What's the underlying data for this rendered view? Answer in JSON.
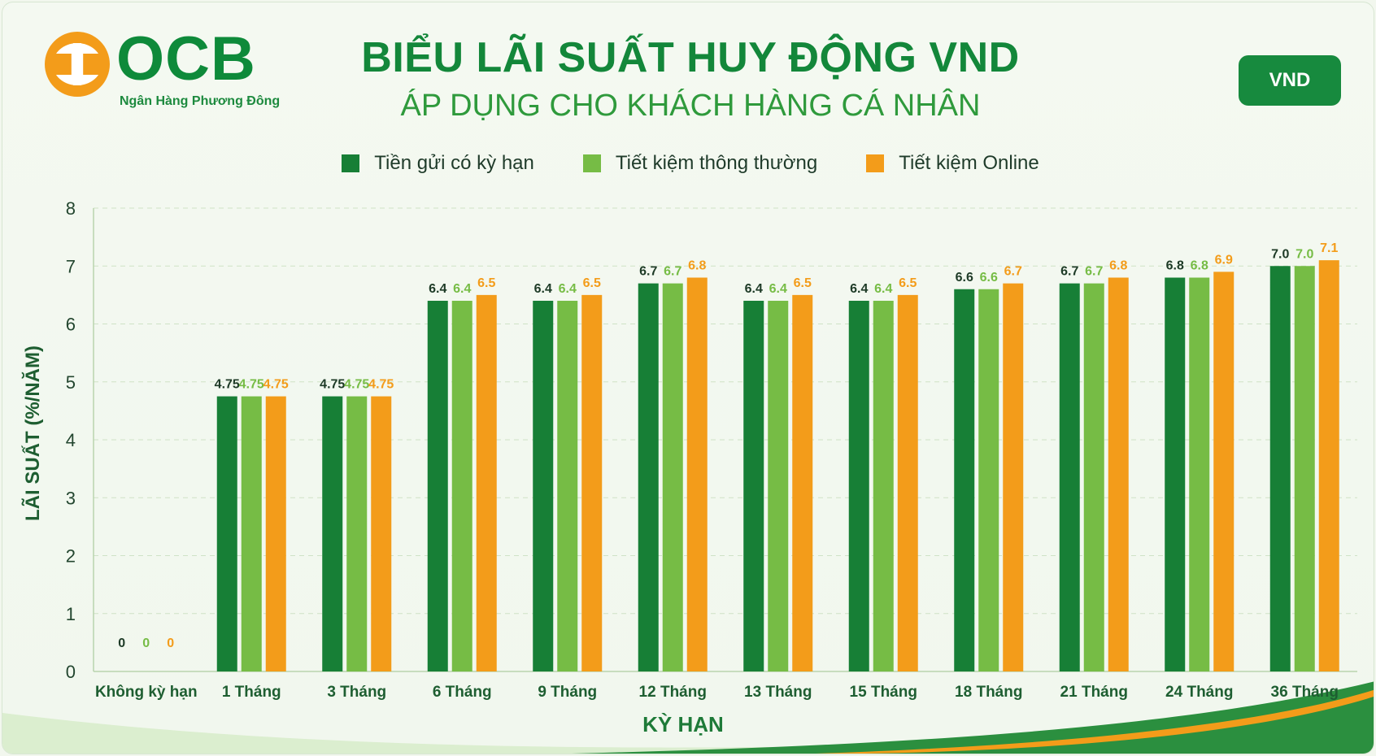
{
  "brand": {
    "name": "OCB",
    "tagline": "Ngân Hàng Phương Đông"
  },
  "header": {
    "title": "BIỂU LÃI SUẤT HUY ĐỘNG VND",
    "subtitle": "ÁP DỤNG CHO KHÁCH HÀNG CÁ NHÂN",
    "currency_badge": "VND"
  },
  "colors": {
    "dark_green": "#177f36",
    "light_green": "#76bc45",
    "orange": "#f39c1a",
    "axis_text": "#23462f",
    "title_green": "#13873a"
  },
  "chart_data": {
    "type": "bar",
    "xlabel": "KỲ HẠN",
    "ylabel": "LÃI SUẤT (%/NĂM)",
    "ylim": [
      0,
      8
    ],
    "yticks": [
      "0",
      "1",
      "2",
      "3",
      "4",
      "5",
      "6",
      "7",
      "8"
    ],
    "grid": true,
    "legend_position": "top",
    "categories": [
      "Không kỳ hạn",
      "1 Tháng",
      "3 Tháng",
      "6 Tháng",
      "9 Tháng",
      "12 Tháng",
      "13 Tháng",
      "15 Tháng",
      "18 Tháng",
      "21 Tháng",
      "24 Tháng",
      "36 Tháng"
    ],
    "series": [
      {
        "name": "Tiền gửi có kỳ hạn",
        "color": "#177f36",
        "values": [
          0,
          4.75,
          4.75,
          6.4,
          6.4,
          6.7,
          6.4,
          6.4,
          6.6,
          6.7,
          6.8,
          7.0
        ],
        "labels": [
          "0",
          "4.75",
          "4.75",
          "6.4",
          "6.4",
          "6.7",
          "6.4",
          "6.4",
          "6.6",
          "6.7",
          "6.8",
          "7.0"
        ]
      },
      {
        "name": "Tiết kiệm thông thường",
        "color": "#76bc45",
        "values": [
          0,
          4.75,
          4.75,
          6.4,
          6.4,
          6.7,
          6.4,
          6.4,
          6.6,
          6.7,
          6.8,
          7.0
        ],
        "labels": [
          "0",
          "4.75",
          "4.75",
          "6.4",
          "6.4",
          "6.7",
          "6.4",
          "6.4",
          "6.6",
          "6.7",
          "6.8",
          "7.0"
        ]
      },
      {
        "name": "Tiết kiệm Online",
        "color": "#f39c1a",
        "values": [
          0,
          4.75,
          4.75,
          6.5,
          6.5,
          6.8,
          6.5,
          6.5,
          6.7,
          6.8,
          6.9,
          7.1
        ],
        "labels": [
          "0",
          "4.75",
          "4.75",
          "6.5",
          "6.5",
          "6.8",
          "6.5",
          "6.5",
          "6.7",
          "6.8",
          "6.9",
          "7.1"
        ]
      }
    ]
  }
}
